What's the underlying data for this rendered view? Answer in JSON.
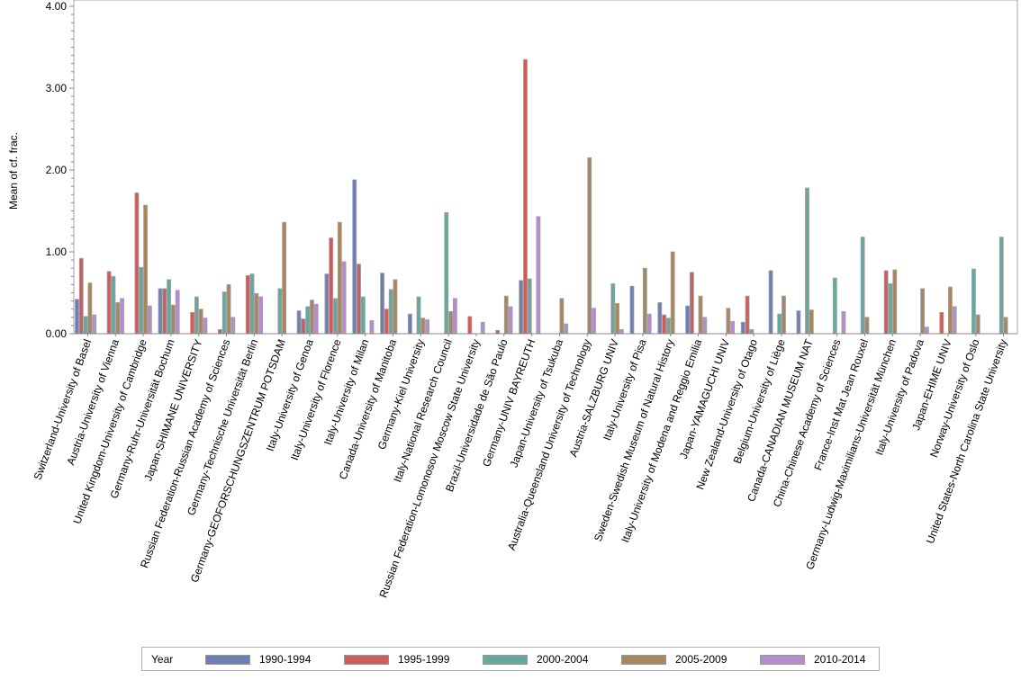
{
  "chart_data": {
    "type": "bar",
    "title": "",
    "xlabel": "",
    "ylabel": "Mean of cf. frac.",
    "ylim": [
      0,
      4
    ],
    "yticks": [
      "0.00",
      "1.00",
      "2.00",
      "3.00",
      "4.00"
    ],
    "legend_title": "Year",
    "legend_position": "bottom",
    "categories": [
      "Switzerland-University of Basel",
      "Austria-University of Vienna",
      "United Kingdom-University of Cambridge",
      "Germany-Ruhr-Universität Bochum",
      "Japan-SHIMANE UNIVERSITY",
      "Russian Federation-Russian Academy of Sciences",
      "Germany-Technische Universität Berlin",
      "Germany-GEOFORSCHUNGSZENTRUM POTSDAM",
      "Italy-University of Genoa",
      "Italy-University of Florence",
      "Italy-University of Milan",
      "Canada-University of Manitoba",
      "Germany-Kiel University",
      "Italy-National Research Council",
      "Russian Federation-Lomonosov Moscow State University",
      "Brazil-Universidade de São Paulo",
      "Germany-UNIV BAYREUTH",
      "Japan-University of Tsukuba",
      "Australia-Queensland University of Technology",
      "Austria-SALZBURG UNIV",
      "Italy-University of Pisa",
      "Sweden-Swedish Museum of Natural History",
      "Italy-University of Modena and Reggio Emilia",
      "Japan-YAMAGUCHI UNIV",
      "New Zealand-University of Otago",
      "Belgium-University of Liège",
      "Canada-CANADIAN MUSEUM NAT",
      "China-Chinese Academy of Sciences",
      "France-Inst Mat Jean Rouxel",
      "Germany-Ludwig-Maximilians-Universität München",
      "Italy-University of Padova",
      "Japan-EHIME UNIV",
      "Norway-University of Oslo",
      "United States-North Carolina State University"
    ],
    "series": [
      {
        "name": "1990-1994",
        "color": "#6f7fb5",
        "values": [
          0.42,
          null,
          null,
          0.55,
          null,
          null,
          null,
          null,
          0.28,
          0.73,
          1.88,
          0.74,
          0.24,
          null,
          null,
          null,
          0.65,
          null,
          null,
          null,
          0.58,
          0.38,
          0.34,
          null,
          0.14,
          0.77,
          0.28,
          null,
          null,
          null,
          null,
          null,
          null,
          null
        ]
      },
      {
        "name": "1995-1999",
        "color": "#d05b5b",
        "values": [
          0.92,
          0.76,
          1.72,
          0.55,
          0.26,
          0.05,
          0.71,
          null,
          0.18,
          1.17,
          0.85,
          0.3,
          null,
          null,
          0.21,
          0.04,
          3.35,
          null,
          null,
          null,
          null,
          0.23,
          0.75,
          null,
          0.46,
          null,
          null,
          null,
          null,
          0.77,
          null,
          0.26,
          null,
          null
        ]
      },
      {
        "name": "2000-2004",
        "color": "#66a8a0",
        "values": [
          0.21,
          0.7,
          0.81,
          0.66,
          0.45,
          0.51,
          0.73,
          0.55,
          0.33,
          0.43,
          0.45,
          0.54,
          0.45,
          1.48,
          null,
          null,
          0.67,
          null,
          null,
          0.61,
          null,
          0.19,
          null,
          null,
          0.05,
          0.24,
          1.78,
          0.68,
          1.18,
          0.61,
          null,
          null,
          0.79,
          1.18
        ]
      },
      {
        "name": "2005-2009",
        "color": "#a8865e",
        "values": [
          0.62,
          0.38,
          1.57,
          0.35,
          0.3,
          0.6,
          0.49,
          1.36,
          0.41,
          1.36,
          null,
          0.66,
          0.19,
          0.27,
          null,
          0.46,
          null,
          0.43,
          2.15,
          0.37,
          0.8,
          1.0,
          0.46,
          0.31,
          null,
          0.46,
          0.29,
          null,
          0.2,
          0.78,
          0.55,
          0.57,
          0.23,
          0.2
        ]
      },
      {
        "name": "2010-2014",
        "color": "#b68ccf",
        "values": [
          0.23,
          0.43,
          0.34,
          0.53,
          0.19,
          0.2,
          0.45,
          null,
          0.36,
          0.88,
          0.16,
          null,
          0.17,
          0.43,
          0.14,
          0.33,
          1.43,
          0.12,
          0.31,
          0.05,
          0.24,
          null,
          0.2,
          0.15,
          null,
          null,
          null,
          0.27,
          null,
          null,
          0.08,
          0.33,
          null,
          null
        ]
      }
    ]
  }
}
